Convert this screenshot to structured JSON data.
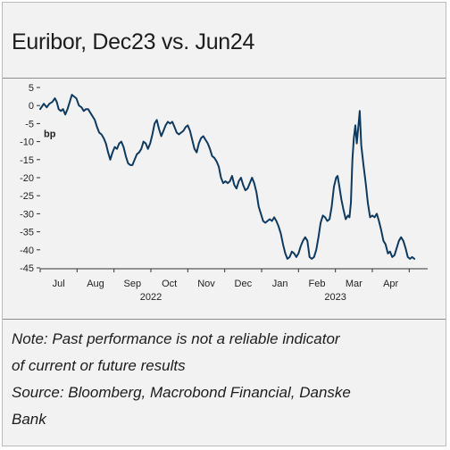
{
  "title": "Euribor, Dec23 vs. Jun24",
  "notes": {
    "line1": "Note: Past performance is not a reliable indicator",
    "line2": "of current or future results",
    "line3": "Source: Bloomberg, Macrobond Financial, Danske",
    "line4": "Bank"
  },
  "chart_data": {
    "type": "line",
    "title": "Euribor, Dec23 vs. Jun24",
    "ylabel": "bp",
    "xlabel": "",
    "ylim": [
      -45,
      5
    ],
    "yticks": [
      5,
      0,
      -5,
      -10,
      -15,
      -20,
      -25,
      -30,
      -35,
      -40,
      -45
    ],
    "ytick_labels": [
      "5",
      "0",
      "-5",
      "-10",
      "-15",
      "-20",
      "-25",
      "-30",
      "-35",
      "-40",
      "-45"
    ],
    "xlim": [
      0,
      10.5
    ],
    "x_months": [
      {
        "label": "Jul",
        "pos": 0.5
      },
      {
        "label": "Aug",
        "pos": 1.5
      },
      {
        "label": "Sep",
        "pos": 2.5
      },
      {
        "label": "Oct",
        "pos": 3.5
      },
      {
        "label": "Nov",
        "pos": 4.5
      },
      {
        "label": "Dec",
        "pos": 5.5
      },
      {
        "label": "Jan",
        "pos": 6.5
      },
      {
        "label": "Feb",
        "pos": 7.5
      },
      {
        "label": "Mar",
        "pos": 8.5
      },
      {
        "label": "Apr",
        "pos": 9.5
      }
    ],
    "x_years": [
      {
        "label": "2022",
        "pos": 3.0
      },
      {
        "label": "2023",
        "pos": 8.0
      }
    ],
    "grid": false,
    "series": [
      {
        "color": "#0f3a5f",
        "points": [
          [
            0.0,
            -1.0
          ],
          [
            0.1,
            0.5
          ],
          [
            0.18,
            -0.5
          ],
          [
            0.25,
            0.5
          ],
          [
            0.33,
            1.0
          ],
          [
            0.4,
            2.0
          ],
          [
            0.45,
            1.0
          ],
          [
            0.5,
            -1.0
          ],
          [
            0.56,
            -1.5
          ],
          [
            0.62,
            -1.0
          ],
          [
            0.68,
            -2.5
          ],
          [
            0.74,
            -1.0
          ],
          [
            0.8,
            1.0
          ],
          [
            0.86,
            3.0
          ],
          [
            0.92,
            2.5
          ],
          [
            0.98,
            2.0
          ],
          [
            1.05,
            0.0
          ],
          [
            1.12,
            -0.5
          ],
          [
            1.18,
            -1.5
          ],
          [
            1.24,
            -1.0
          ],
          [
            1.3,
            -1.0
          ],
          [
            1.36,
            -2.0
          ],
          [
            1.42,
            -3.0
          ],
          [
            1.48,
            -4.0
          ],
          [
            1.54,
            -6.0
          ],
          [
            1.6,
            -7.5
          ],
          [
            1.66,
            -8.0
          ],
          [
            1.72,
            -9.0
          ],
          [
            1.78,
            -10.5
          ],
          [
            1.84,
            -13.0
          ],
          [
            1.9,
            -15.0
          ],
          [
            1.96,
            -13.0
          ],
          [
            2.02,
            -11.5
          ],
          [
            2.08,
            -12.0
          ],
          [
            2.14,
            -10.5
          ],
          [
            2.2,
            -10.0
          ],
          [
            2.26,
            -11.5
          ],
          [
            2.32,
            -14.0
          ],
          [
            2.38,
            -16.0
          ],
          [
            2.44,
            -16.5
          ],
          [
            2.5,
            -16.5
          ],
          [
            2.56,
            -15.0
          ],
          [
            2.62,
            -13.5
          ],
          [
            2.68,
            -13.0
          ],
          [
            2.74,
            -12.0
          ],
          [
            2.8,
            -10.0
          ],
          [
            2.86,
            -10.5
          ],
          [
            2.92,
            -12.0
          ],
          [
            2.98,
            -10.5
          ],
          [
            3.04,
            -8.0
          ],
          [
            3.1,
            -5.0
          ],
          [
            3.16,
            -4.0
          ],
          [
            3.22,
            -6.5
          ],
          [
            3.28,
            -8.5
          ],
          [
            3.34,
            -7.0
          ],
          [
            3.4,
            -5.5
          ],
          [
            3.46,
            -4.5
          ],
          [
            3.52,
            -5.0
          ],
          [
            3.58,
            -4.5
          ],
          [
            3.64,
            -6.0
          ],
          [
            3.7,
            -7.5
          ],
          [
            3.76,
            -8.0
          ],
          [
            3.82,
            -7.5
          ],
          [
            3.88,
            -7.0
          ],
          [
            3.94,
            -6.0
          ],
          [
            4.0,
            -5.5
          ],
          [
            4.06,
            -7.0
          ],
          [
            4.12,
            -9.5
          ],
          [
            4.18,
            -12.0
          ],
          [
            4.24,
            -13.0
          ],
          [
            4.3,
            -10.5
          ],
          [
            4.36,
            -9.0
          ],
          [
            4.42,
            -8.5
          ],
          [
            4.48,
            -9.5
          ],
          [
            4.54,
            -10.5
          ],
          [
            4.6,
            -12.0
          ],
          [
            4.66,
            -14.0
          ],
          [
            4.72,
            -14.5
          ],
          [
            4.78,
            -15.5
          ],
          [
            4.84,
            -17.0
          ],
          [
            4.9,
            -20.0
          ],
          [
            4.96,
            -21.5
          ],
          [
            5.02,
            -21.0
          ],
          [
            5.08,
            -21.5
          ],
          [
            5.14,
            -21.0
          ],
          [
            5.2,
            -19.5
          ],
          [
            5.26,
            -22.0
          ],
          [
            5.32,
            -23.0
          ],
          [
            5.38,
            -21.0
          ],
          [
            5.44,
            -20.0
          ],
          [
            5.5,
            -22.0
          ],
          [
            5.56,
            -23.5
          ],
          [
            5.62,
            -23.0
          ],
          [
            5.68,
            -21.5
          ],
          [
            5.74,
            -20.0
          ],
          [
            5.8,
            -21.5
          ],
          [
            5.86,
            -24.0
          ],
          [
            5.92,
            -28.0
          ],
          [
            5.98,
            -30.0
          ],
          [
            6.04,
            -32.0
          ],
          [
            6.1,
            -32.5
          ],
          [
            6.16,
            -32.0
          ],
          [
            6.22,
            -31.5
          ],
          [
            6.28,
            -32.0
          ],
          [
            6.34,
            -31.0
          ],
          [
            6.4,
            -32.0
          ],
          [
            6.46,
            -33.5
          ],
          [
            6.52,
            -35.5
          ],
          [
            6.58,
            -38.5
          ],
          [
            6.64,
            -41.0
          ],
          [
            6.7,
            -42.5
          ],
          [
            6.76,
            -42.0
          ],
          [
            6.82,
            -40.5
          ],
          [
            6.88,
            -41.0
          ],
          [
            6.94,
            -42.0
          ],
          [
            7.0,
            -41.0
          ],
          [
            7.06,
            -39.0
          ],
          [
            7.12,
            -37.5
          ],
          [
            7.18,
            -36.5
          ],
          [
            7.24,
            -37.5
          ],
          [
            7.3,
            -42.0
          ],
          [
            7.36,
            -42.5
          ],
          [
            7.42,
            -42.0
          ],
          [
            7.48,
            -40.0
          ],
          [
            7.54,
            -36.5
          ],
          [
            7.6,
            -32.5
          ],
          [
            7.66,
            -30.5
          ],
          [
            7.72,
            -31.0
          ],
          [
            7.78,
            -32.0
          ],
          [
            7.84,
            -31.5
          ],
          [
            7.9,
            -28.0
          ],
          [
            7.96,
            -22.5
          ],
          [
            8.02,
            -20.0
          ],
          [
            8.06,
            -19.5
          ],
          [
            8.1,
            -22.0
          ],
          [
            8.16,
            -26.0
          ],
          [
            8.22,
            -29.0
          ],
          [
            8.28,
            -31.5
          ],
          [
            8.34,
            -30.5
          ],
          [
            8.38,
            -31.0
          ],
          [
            8.42,
            -27.0
          ],
          [
            8.46,
            -15.0
          ],
          [
            8.5,
            -9.0
          ],
          [
            8.54,
            -5.5
          ],
          [
            8.58,
            -10.5
          ],
          [
            8.62,
            -6.0
          ],
          [
            8.66,
            -1.5
          ],
          [
            8.7,
            -11.0
          ],
          [
            8.76,
            -16.5
          ],
          [
            8.82,
            -21.5
          ],
          [
            8.88,
            -27.0
          ],
          [
            8.94,
            -31.0
          ],
          [
            9.0,
            -30.5
          ],
          [
            9.06,
            -31.0
          ],
          [
            9.12,
            -30.0
          ],
          [
            9.18,
            -32.0
          ],
          [
            9.24,
            -34.5
          ],
          [
            9.3,
            -37.5
          ],
          [
            9.36,
            -38.5
          ],
          [
            9.42,
            -41.0
          ],
          [
            9.48,
            -40.5
          ],
          [
            9.54,
            -42.0
          ],
          [
            9.6,
            -41.5
          ],
          [
            9.66,
            -39.5
          ],
          [
            9.72,
            -37.5
          ],
          [
            9.78,
            -36.5
          ],
          [
            9.84,
            -37.5
          ],
          [
            9.9,
            -39.5
          ],
          [
            9.96,
            -42.0
          ],
          [
            10.02,
            -42.5
          ],
          [
            10.08,
            -42.0
          ],
          [
            10.14,
            -42.5
          ]
        ]
      }
    ]
  }
}
